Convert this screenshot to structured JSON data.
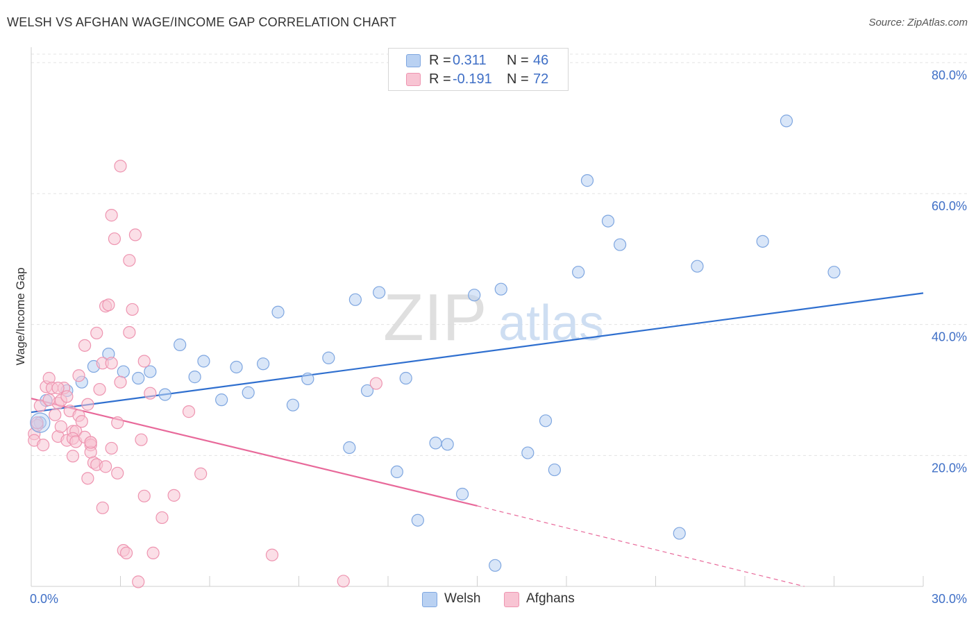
{
  "title": "WELSH VS AFGHAN WAGE/INCOME GAP CORRELATION CHART",
  "source": "Source: ZipAtlas.com",
  "watermark": {
    "zip": "ZIP",
    "atlas": "atlas"
  },
  "legend": {
    "welsh": {
      "r_label": "R =",
      "r_value": "0.311",
      "n_label": "N =",
      "n_value": "46"
    },
    "afghans": {
      "r_label": "R =",
      "r_value": "-0.191",
      "n_label": "N =",
      "n_value": "72"
    }
  },
  "colors": {
    "welsh_fill": "#b9d1f2",
    "welsh_stroke": "#7ea6e0",
    "welsh_line": "#2f6fcf",
    "afghan_fill": "#f8c4d3",
    "afghan_stroke": "#ee94b0",
    "afghan_line": "#e8699a",
    "axis_text": "#3f6fc6",
    "grid": "#e3e3e3"
  },
  "chart_data": {
    "type": "scatter",
    "title": "WELSH VS AFGHAN WAGE/INCOME GAP CORRELATION CHART",
    "xlabel": "",
    "ylabel": "Wage/Income Gap",
    "xlim": [
      0,
      30
    ],
    "ylim": [
      0,
      83
    ],
    "x_tick_labels": [
      "0.0%",
      "30.0%"
    ],
    "y_ticks": [
      20,
      40,
      60,
      80
    ],
    "y_tick_labels": [
      "20.0%",
      "40.0%",
      "60.0%",
      "80.0%"
    ],
    "grid": "horizontal dashed",
    "legend_position": "top-center",
    "series": [
      {
        "name": "Welsh",
        "r": 0.311,
        "n": 46,
        "trend": {
          "x": [
            0,
            30
          ],
          "y": [
            26.6,
            44.8
          ],
          "style": "solid"
        },
        "points": [
          [
            0.3,
            25.0
          ],
          [
            0.5,
            28.4
          ],
          [
            1.2,
            29.9
          ],
          [
            1.7,
            31.2
          ],
          [
            2.1,
            33.6
          ],
          [
            2.6,
            35.5
          ],
          [
            3.1,
            32.8
          ],
          [
            3.6,
            31.8
          ],
          [
            4.0,
            32.8
          ],
          [
            4.5,
            29.3
          ],
          [
            5.0,
            36.9
          ],
          [
            5.5,
            32.0
          ],
          [
            5.8,
            34.4
          ],
          [
            6.4,
            28.5
          ],
          [
            6.9,
            33.5
          ],
          [
            7.3,
            29.6
          ],
          [
            7.8,
            34.0
          ],
          [
            8.3,
            41.9
          ],
          [
            8.8,
            27.7
          ],
          [
            9.3,
            31.7
          ],
          [
            10.0,
            34.9
          ],
          [
            10.7,
            21.2
          ],
          [
            10.9,
            43.8
          ],
          [
            11.3,
            29.9
          ],
          [
            11.7,
            44.9
          ],
          [
            12.3,
            17.5
          ],
          [
            12.6,
            31.8
          ],
          [
            13.0,
            10.1
          ],
          [
            13.6,
            21.9
          ],
          [
            14.0,
            21.7
          ],
          [
            14.5,
            14.1
          ],
          [
            14.9,
            44.5
          ],
          [
            15.6,
            3.2
          ],
          [
            15.8,
            45.4
          ],
          [
            16.7,
            20.4
          ],
          [
            17.3,
            25.3
          ],
          [
            17.6,
            17.8
          ],
          [
            18.4,
            48.0
          ],
          [
            18.7,
            62.0
          ],
          [
            19.4,
            55.8
          ],
          [
            19.8,
            52.2
          ],
          [
            21.8,
            8.1
          ],
          [
            22.4,
            48.9
          ],
          [
            24.6,
            52.7
          ],
          [
            25.4,
            71.1
          ],
          [
            27.0,
            48.0
          ]
        ]
      },
      {
        "name": "Afghans",
        "r": -0.191,
        "n": 72,
        "trend": {
          "x": [
            0,
            15
          ],
          "y": [
            28.7,
            12.3
          ],
          "style": "solid",
          "extension": {
            "x": [
              15,
              26.0
            ],
            "y": [
              12.3,
              0
            ],
            "style": "dashed"
          }
        },
        "points": [
          [
            0.1,
            23.3
          ],
          [
            0.1,
            22.3
          ],
          [
            0.2,
            24.6
          ],
          [
            0.3,
            27.6
          ],
          [
            0.4,
            21.6
          ],
          [
            0.5,
            30.5
          ],
          [
            0.6,
            31.8
          ],
          [
            0.7,
            30.3
          ],
          [
            0.8,
            26.2
          ],
          [
            0.9,
            28.0
          ],
          [
            0.9,
            22.9
          ],
          [
            1.0,
            24.4
          ],
          [
            1.0,
            28.4
          ],
          [
            1.1,
            30.3
          ],
          [
            1.2,
            29.0
          ],
          [
            1.2,
            22.3
          ],
          [
            1.3,
            26.8
          ],
          [
            1.4,
            23.7
          ],
          [
            1.5,
            23.7
          ],
          [
            1.4,
            22.6
          ],
          [
            1.4,
            19.9
          ],
          [
            1.5,
            22.1
          ],
          [
            1.6,
            32.2
          ],
          [
            1.6,
            26.1
          ],
          [
            1.7,
            25.2
          ],
          [
            1.8,
            36.8
          ],
          [
            1.8,
            22.8
          ],
          [
            1.9,
            16.5
          ],
          [
            1.9,
            27.8
          ],
          [
            2.0,
            22.0
          ],
          [
            2.0,
            21.6
          ],
          [
            2.0,
            20.5
          ],
          [
            2.1,
            18.9
          ],
          [
            2.2,
            38.7
          ],
          [
            2.2,
            18.6
          ],
          [
            2.3,
            30.1
          ],
          [
            2.4,
            12.0
          ],
          [
            2.4,
            34.1
          ],
          [
            2.5,
            18.3
          ],
          [
            2.5,
            42.8
          ],
          [
            2.6,
            43.0
          ],
          [
            2.7,
            21.1
          ],
          [
            2.7,
            34.1
          ],
          [
            2.7,
            56.7
          ],
          [
            2.8,
            53.1
          ],
          [
            2.9,
            17.3
          ],
          [
            2.9,
            25.0
          ],
          [
            3.0,
            31.2
          ],
          [
            3.0,
            64.2
          ],
          [
            3.1,
            5.5
          ],
          [
            3.2,
            5.1
          ],
          [
            3.3,
            49.8
          ],
          [
            3.3,
            38.8
          ],
          [
            3.4,
            42.3
          ],
          [
            3.5,
            53.7
          ],
          [
            3.6,
            0.7
          ],
          [
            3.7,
            22.4
          ],
          [
            3.8,
            13.8
          ],
          [
            3.8,
            34.4
          ],
          [
            4.0,
            29.5
          ],
          [
            4.1,
            5.1
          ],
          [
            4.4,
            10.5
          ],
          [
            4.8,
            13.9
          ],
          [
            5.3,
            26.7
          ],
          [
            5.7,
            17.2
          ],
          [
            8.1,
            4.8
          ],
          [
            10.5,
            0.8
          ],
          [
            11.6,
            31.0
          ],
          [
            0.2,
            25.0
          ],
          [
            0.9,
            30.3
          ],
          [
            2.0,
            22.0
          ],
          [
            0.6,
            28.5
          ]
        ]
      }
    ]
  },
  "bottom_legend": {
    "welsh": "Welsh",
    "afghans": "Afghans"
  }
}
